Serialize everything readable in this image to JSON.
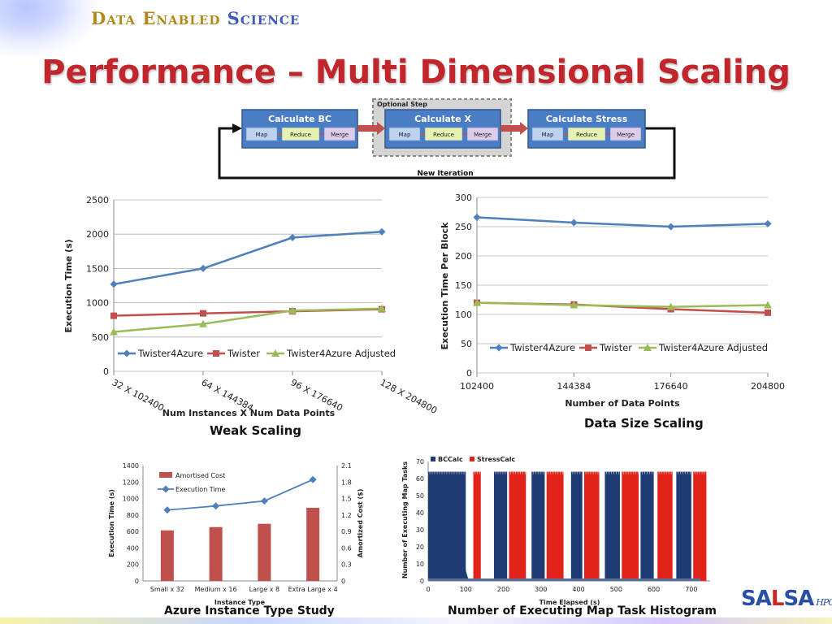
{
  "header": {
    "brand_part1": "Data Enabled ",
    "brand_part2": "Science",
    "title": "Performance – Multi Dimensional Scaling"
  },
  "flow": {
    "optional_label": "Optional Step",
    "loop_label": "New Iteration",
    "steps": [
      {
        "title": "Calculate BC",
        "tasks": [
          "Map",
          "Reduce",
          "Merge"
        ]
      },
      {
        "title": "Calculate X",
        "tasks": [
          "Map",
          "Reduce",
          "Merge"
        ]
      },
      {
        "title": "Calculate Stress",
        "tasks": [
          "Map",
          "Reduce",
          "Merge"
        ]
      }
    ]
  },
  "captions": {
    "weak": "Weak Scaling",
    "datasize": "Data Size Scaling",
    "azure": "Azure Instance Type Study",
    "hist": "Number of Executing Map Task Histogram"
  },
  "logo": {
    "part1": "SA",
    "part2": "L",
    "part3": "SA",
    "suffix": "HPC"
  },
  "colors": {
    "twister4azure": "#4f7fbd",
    "twister": "#c0504d",
    "adjusted": "#9bbb59",
    "flow_box": "#4a7dc4",
    "arrow": "#c0504d"
  },
  "chart_data": [
    {
      "type": "line",
      "categories": [
        "32 X 102400",
        "64 X 144384",
        "96 X 176640",
        "128 X 204800"
      ],
      "series": [
        {
          "name": "Twister4Azure",
          "values": [
            1270,
            1500,
            1950,
            2035
          ]
        },
        {
          "name": "Twister",
          "values": [
            810,
            845,
            875,
            905
          ]
        },
        {
          "name": "Twister4Azure Adjusted",
          "values": [
            575,
            690,
            885,
            915
          ]
        }
      ],
      "xlabel": "Num Instances X Num Data Points",
      "ylabel": "Execution Time (s)",
      "ylim": [
        0,
        2500
      ],
      "yticks": [
        "0",
        "500",
        "1000",
        "1500",
        "2000",
        "2500"
      ],
      "legend": "bottom-inside",
      "grid": true
    },
    {
      "type": "line",
      "categories": [
        "102400",
        "144384",
        "176640",
        "204800"
      ],
      "series": [
        {
          "name": "Twister4Azure",
          "values": [
            266,
            257,
            250,
            255
          ]
        },
        {
          "name": "Twister",
          "values": [
            120,
            117,
            109,
            103
          ]
        },
        {
          "name": "Twister4Azure Adjusted",
          "values": [
            120,
            116,
            113,
            116
          ]
        }
      ],
      "xlabel": "Number of Data Points",
      "ylabel": "Execution Time Per Block",
      "ylim": [
        0,
        300
      ],
      "yticks": [
        "0",
        "50",
        "100",
        "150",
        "200",
        "250",
        "300"
      ],
      "legend": "bottom-inside",
      "grid": true
    },
    {
      "type": "bar",
      "categories": [
        "Small x 32",
        "Medium x 16",
        "Large x 8",
        "Extra Large x 4"
      ],
      "series": [
        {
          "name": "Amortised Cost",
          "type": "bar",
          "axis": "right",
          "values": [
            0.92,
            0.98,
            1.04,
            1.33
          ]
        },
        {
          "name": "Execution Time",
          "type": "line",
          "axis": "left",
          "values": [
            860,
            910,
            970,
            1230
          ]
        }
      ],
      "xlabel": "Instance Type",
      "ylabel": "Execution Time (s)",
      "y2label": "Amortized Cost ($)",
      "ylim": [
        0,
        1400
      ],
      "y2lim": [
        0,
        2.1
      ],
      "yticks": [
        "0",
        "200",
        "400",
        "600",
        "800",
        "1000",
        "1200",
        "1400"
      ],
      "y2ticks": [
        "0",
        "0.3",
        "0.6",
        "0.9",
        "1.2",
        "1.5",
        "1.8",
        "2.1"
      ],
      "legend": "top-left"
    },
    {
      "type": "bar",
      "subtype": "histogram",
      "series": [
        {
          "name": "BCCalc",
          "color": "#1f3b73",
          "segments": [
            [
              0,
              100
            ],
            [
              175,
              210
            ],
            [
              275,
              310
            ],
            [
              380,
              410
            ],
            [
              470,
              510
            ],
            [
              565,
              600
            ],
            [
              660,
              700
            ]
          ]
        },
        {
          "name": "StressCalc",
          "color": "#e2231a",
          "segments": [
            [
              120,
              140
            ],
            [
              215,
              260
            ],
            [
              315,
              360
            ],
            [
              415,
              455
            ],
            [
              515,
              560
            ],
            [
              610,
              650
            ],
            [
              705,
              740
            ]
          ]
        }
      ],
      "peak_tasks": 64,
      "tail": {
        "from": 75,
        "to": 110
      },
      "xlabel": "Time Elapsed (s)",
      "ylabel": "Number of Executing Map Tasks",
      "xlim": [
        0,
        750
      ],
      "ylim": [
        0,
        70
      ],
      "xticks": [
        "0",
        "100",
        "200",
        "300",
        "400",
        "500",
        "600",
        "700"
      ],
      "yticks": [
        "0",
        "10",
        "20",
        "30",
        "40",
        "50",
        "60",
        "70"
      ],
      "legend": "top-left"
    }
  ]
}
